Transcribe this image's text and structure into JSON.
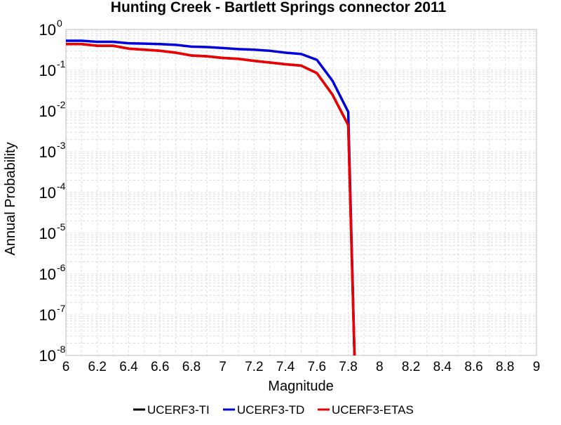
{
  "chart_data": {
    "type": "line",
    "title": "Hunting Creek - Bartlett Springs connector 2011",
    "xlabel": "Magnitude",
    "ylabel": "Annual Probability",
    "xlim": [
      6,
      9
    ],
    "ylim": [
      1e-08,
      1
    ],
    "yscale": "log",
    "grid": true,
    "legend_position": "bottom",
    "x_ticks": [
      "6",
      "6.2",
      "6.4",
      "6.6",
      "6.8",
      "7",
      "7.2",
      "7.4",
      "7.6",
      "7.8",
      "8",
      "8.2",
      "8.4",
      "8.6",
      "8.8",
      "9"
    ],
    "y_ticks": [
      {
        "base": "10",
        "exp": "0"
      },
      {
        "base": "10",
        "exp": "-1"
      },
      {
        "base": "10",
        "exp": "-2"
      },
      {
        "base": "10",
        "exp": "-3"
      },
      {
        "base": "10",
        "exp": "-4"
      },
      {
        "base": "10",
        "exp": "-5"
      },
      {
        "base": "10",
        "exp": "-6"
      },
      {
        "base": "10",
        "exp": "-7"
      },
      {
        "base": "10",
        "exp": "-8"
      }
    ],
    "series": [
      {
        "name": "UCERF3-TI",
        "color": "#000000",
        "x": [
          6.0,
          6.1,
          6.2,
          6.3,
          6.4,
          6.5,
          6.6,
          6.7,
          6.8,
          6.9,
          7.0,
          7.1,
          7.2,
          7.3,
          7.4,
          7.5,
          7.6,
          7.7,
          7.8,
          7.84
        ],
        "y": [
          0.44,
          0.44,
          0.4,
          0.4,
          0.34,
          0.32,
          0.3,
          0.27,
          0.23,
          0.22,
          0.2,
          0.19,
          0.17,
          0.155,
          0.14,
          0.13,
          0.085,
          0.025,
          0.0045,
          1e-08
        ]
      },
      {
        "name": "UCERF3-TD",
        "color": "#0000dd",
        "x": [
          6.0,
          6.1,
          6.2,
          6.3,
          6.4,
          6.5,
          6.6,
          6.7,
          6.8,
          6.9,
          7.0,
          7.1,
          7.2,
          7.3,
          7.4,
          7.5,
          7.6,
          7.7,
          7.8,
          7.84
        ],
        "y": [
          0.53,
          0.53,
          0.5,
          0.5,
          0.46,
          0.45,
          0.44,
          0.42,
          0.38,
          0.37,
          0.35,
          0.33,
          0.32,
          0.3,
          0.27,
          0.25,
          0.18,
          0.055,
          0.0095,
          1e-08
        ]
      },
      {
        "name": "UCERF3-ETAS",
        "color": "#ee0000",
        "x": [
          6.0,
          6.1,
          6.2,
          6.3,
          6.4,
          6.5,
          6.6,
          6.7,
          6.8,
          6.9,
          7.0,
          7.1,
          7.2,
          7.3,
          7.4,
          7.5,
          7.6,
          7.7,
          7.8,
          7.84
        ],
        "y": [
          0.44,
          0.44,
          0.4,
          0.4,
          0.34,
          0.32,
          0.3,
          0.27,
          0.23,
          0.22,
          0.2,
          0.19,
          0.17,
          0.155,
          0.14,
          0.13,
          0.085,
          0.025,
          0.0045,
          1e-08
        ]
      }
    ]
  }
}
